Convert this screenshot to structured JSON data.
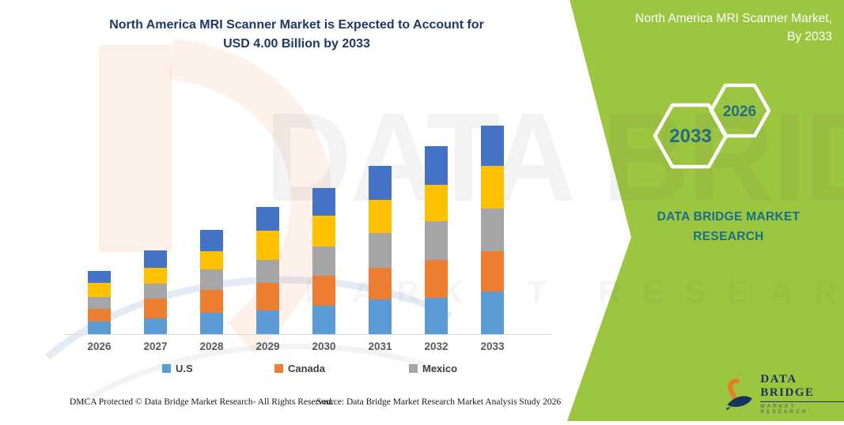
{
  "header": {
    "title_line1": "North America MRI Scanner Market is Expected to Account for",
    "title_line2": "USD 4.00 Billion by 2033",
    "panel_title_line1": "North America MRI Scanner Market,",
    "panel_title_line2": "By 2033",
    "hex_badges": [
      {
        "label": "2033"
      },
      {
        "label": "2026"
      }
    ],
    "brand_line1": "DATA BRIDGE MARKET",
    "brand_line2": "RESEARCH"
  },
  "chart_data": {
    "type": "bar",
    "stacked": true,
    "title": "North America MRI Scanner Market is Expected to Account for USD 4.00 Billion by 2033",
    "unit": "USD Billion",
    "categories": [
      "2026",
      "2027",
      "2028",
      "2029",
      "2030",
      "2031",
      "2032",
      "2033"
    ],
    "series": [
      {
        "name": "U.S",
        "color": "#5B9BD5",
        "values": [
          0.25,
          0.31,
          0.41,
          0.46,
          0.55,
          0.66,
          0.7,
          0.82
        ]
      },
      {
        "name": "Canada",
        "color": "#ED7D31",
        "values": [
          0.23,
          0.37,
          0.44,
          0.53,
          0.57,
          0.62,
          0.73,
          0.77
        ]
      },
      {
        "name": "Mexico",
        "color": "#A5A5A5",
        "values": [
          0.24,
          0.29,
          0.4,
          0.44,
          0.57,
          0.66,
          0.73,
          0.82
        ]
      },
      {
        "name": "",
        "color": "#FFC000",
        "values": [
          0.26,
          0.3,
          0.34,
          0.55,
          0.58,
          0.63,
          0.71,
          0.82
        ]
      },
      {
        "name": "",
        "color": "#4472C4",
        "values": [
          0.24,
          0.34,
          0.41,
          0.46,
          0.54,
          0.66,
          0.74,
          0.77
        ]
      }
    ],
    "totals": [
      1.22,
      1.61,
      2.0,
      2.44,
      2.81,
      3.23,
      3.61,
      4.0
    ],
    "ylim": [
      0,
      4.2
    ],
    "grid": false,
    "y_axis_visible": false,
    "legend_position": "bottom",
    "legend_visible_entries": [
      "U.S",
      "Canada",
      "Mexico"
    ]
  },
  "legend": {
    "items": [
      {
        "label": "U.S",
        "color": "#5B9BD5"
      },
      {
        "label": "Canada",
        "color": "#ED7D31"
      },
      {
        "label": "Mexico",
        "color": "#A5A5A5"
      }
    ]
  },
  "footer": {
    "dmca": "DMCA Protected © Data Bridge Market Research-  All Rights Reserved.",
    "source": "Source: Data Bridge Market Research  Market Analysis Study 2026"
  },
  "logo": {
    "name": "DATA BRIDGE",
    "sub": "MARKET RESEARCH"
  },
  "watermark": {
    "big_text": "DATA BRIDGE",
    "sub_text": "MARKET RESEARCH"
  },
  "colors": {
    "panel_green": "#9CC63F",
    "title_navy": "#1F3864",
    "hex_text_teal": "#226E80",
    "brand_teal": "#1B7086",
    "axis_label_gray": "#595959"
  }
}
